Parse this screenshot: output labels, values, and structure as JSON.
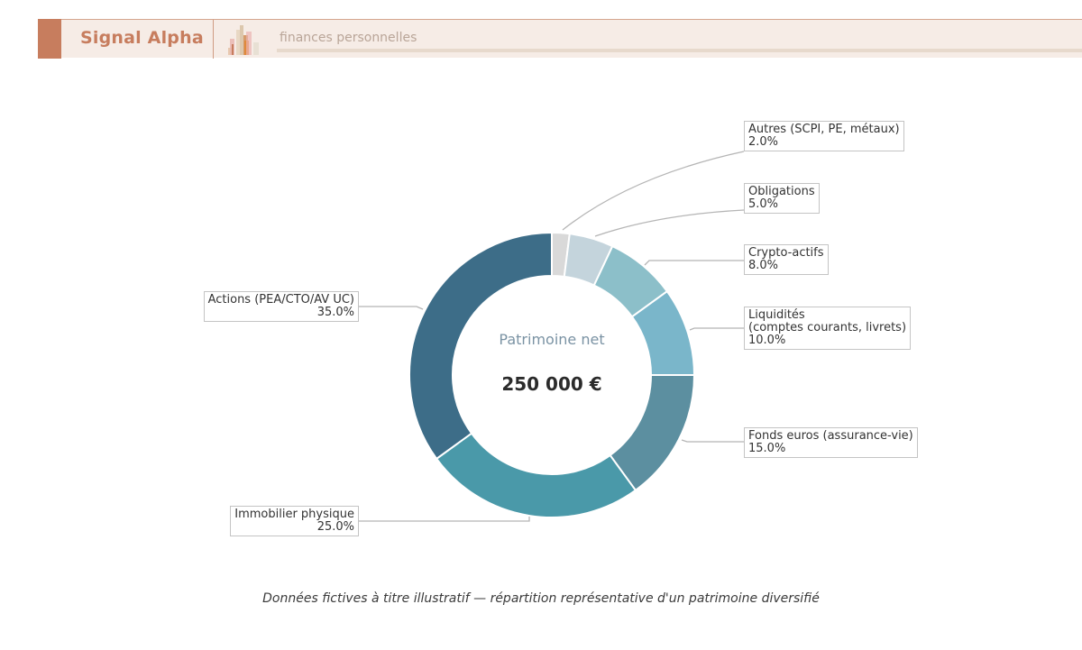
{
  "header": {
    "brand": "Signal Alpha",
    "tagline": "finances personnelles",
    "logo_icon": "bar-chart-logo-icon",
    "colors": {
      "accent": "#c77d5e",
      "background": "#f6ece6",
      "tagline": "#b9a598"
    }
  },
  "center": {
    "title": "Patrimoine net",
    "value": "250 000 €"
  },
  "labels": {
    "autres": {
      "name": "Autres (SCPI, PE, métaux)",
      "pct": "2.0%"
    },
    "obligations": {
      "name": "Obligations",
      "pct": "5.0%"
    },
    "crypto": {
      "name": "Crypto-actifs",
      "pct": "8.0%"
    },
    "liquidites": {
      "name": "Liquidités",
      "name2": "(comptes courants, livrets)",
      "pct": "10.0%"
    },
    "fonds": {
      "name": "Fonds euros (assurance-vie)",
      "pct": "15.0%"
    },
    "immobilier": {
      "name": "Immobilier physique",
      "pct": "25.0%"
    },
    "actions": {
      "name": "Actions (PEA/CTO/AV UC)",
      "pct": "35.0%"
    }
  },
  "footnote": "Données fictives à titre illustratif — répartition représentative d'un patrimoine diversifié",
  "chart_data": {
    "type": "pie",
    "subtype": "donut",
    "title": "Patrimoine net",
    "center_value": "250 000 €",
    "total": 250000,
    "categories": [
      "Autres (SCPI, PE, métaux)",
      "Obligations",
      "Crypto-actifs",
      "Liquidités (comptes courants, livrets)",
      "Fonds euros (assurance-vie)",
      "Immobilier physique",
      "Actions (PEA/CTO/AV UC)"
    ],
    "values": [
      2.0,
      5.0,
      8.0,
      10.0,
      15.0,
      25.0,
      35.0
    ],
    "colors": [
      "#d9d9d9",
      "#c4d4dc",
      "#8cbfc9",
      "#7ab6ca",
      "#5c8fa0",
      "#4a99a9",
      "#3d6d88"
    ],
    "start_angle": "12 o'clock",
    "direction": "clockwise",
    "legend": "none (outside labels with leader lines)",
    "footnote": "Données fictives à titre illustratif — répartition représentative d'un patrimoine diversifié"
  }
}
